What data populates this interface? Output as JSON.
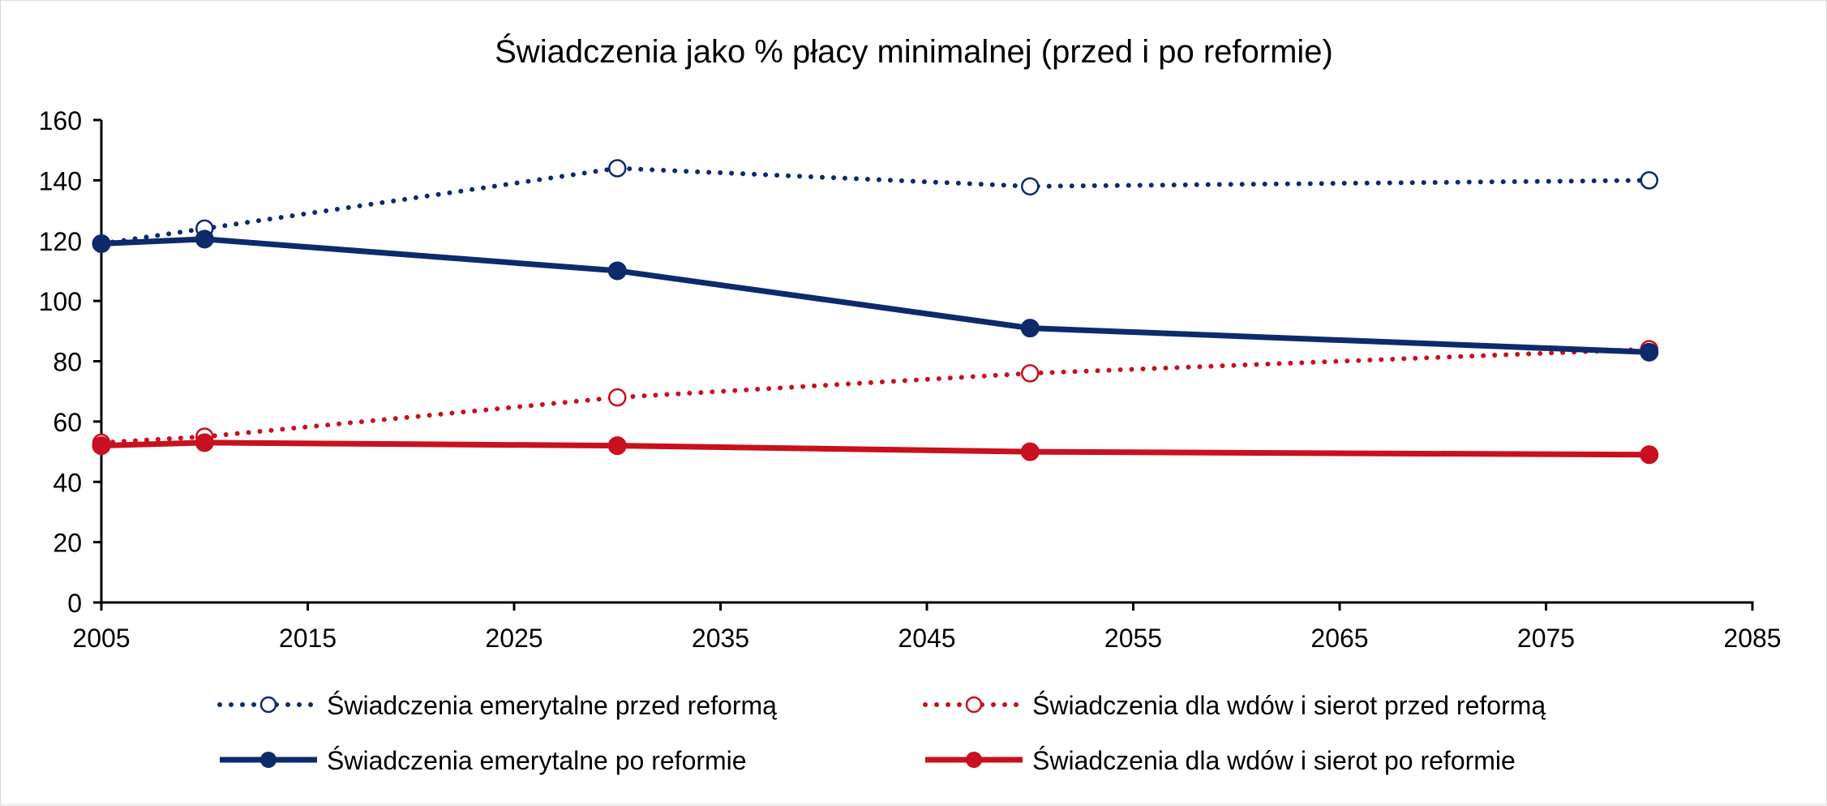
{
  "chart_data": {
    "type": "line",
    "title": "Świadczenia jako % płacy minimalnej (przed i po reformie)",
    "xlabel": "",
    "ylabel": "",
    "xlim": [
      2005,
      2085
    ],
    "ylim": [
      0,
      160
    ],
    "x_ticks": [
      2005,
      2015,
      2025,
      2035,
      2045,
      2055,
      2065,
      2075,
      2085
    ],
    "y_ticks": [
      0,
      20,
      40,
      60,
      80,
      100,
      120,
      140,
      160
    ],
    "grid": false,
    "legend_position": "bottom",
    "x": [
      2005,
      2010,
      2030,
      2050,
      2080
    ],
    "series": [
      {
        "name": "Świadczenia emerytalne przed reformą",
        "values": [
          119,
          124,
          144,
          138,
          140
        ],
        "color": "#0e2a6b",
        "line_style": "dotted",
        "marker": "open-circle"
      },
      {
        "name": "Świadczenia dla wdów i sierot przed reformą",
        "values": [
          53,
          55,
          68,
          76,
          84
        ],
        "color": "#c8101e",
        "line_style": "dotted",
        "marker": "open-circle"
      },
      {
        "name": "Świadczenia emerytalne po reformie",
        "values": [
          119,
          120.5,
          110,
          91,
          83
        ],
        "color": "#0e2a6b",
        "line_style": "solid",
        "marker": "filled-circle"
      },
      {
        "name": "Świadczenia dla wdów i sierot po reformie",
        "values": [
          52,
          53,
          52,
          50,
          49
        ],
        "color": "#c8101e",
        "line_style": "solid",
        "marker": "filled-circle"
      }
    ]
  }
}
